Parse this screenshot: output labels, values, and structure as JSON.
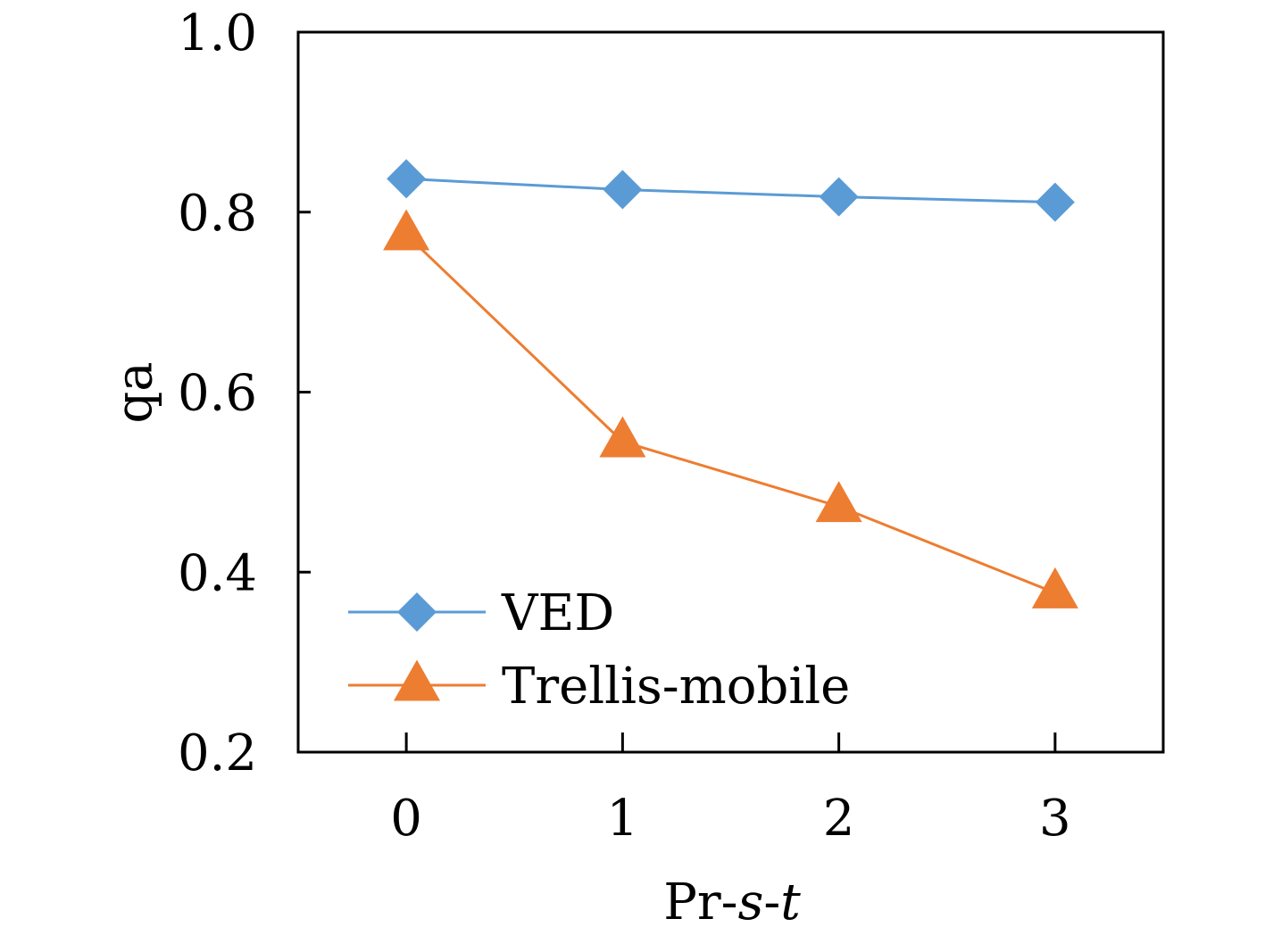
{
  "chart_data": {
    "type": "line",
    "title": "",
    "xlabel": {
      "prefix": "Pr-",
      "s": "s",
      "dash": "-",
      "t": "t"
    },
    "ylabel": "qa",
    "x": [
      0,
      1,
      2,
      3
    ],
    "x_tick_labels": [
      "0",
      "1",
      "2",
      "3"
    ],
    "xlim": [
      -0.5,
      3.5
    ],
    "ylim": [
      0.2,
      1.0
    ],
    "y_ticks": [
      0.2,
      0.4,
      0.6,
      0.8,
      1.0
    ],
    "y_tick_labels": [
      "0.2",
      "0.4",
      "0.6",
      "0.8",
      "1.0"
    ],
    "grid": false,
    "legend_position": "bottom-left",
    "series": [
      {
        "name": "VED",
        "values": [
          0.837,
          0.825,
          0.817,
          0.811
        ],
        "color": "#5B9BD5",
        "marker": "diamond"
      },
      {
        "name": "Trellis-mobile",
        "values": [
          0.775,
          0.545,
          0.473,
          0.377
        ],
        "color": "#ED7D31",
        "marker": "triangle"
      }
    ]
  }
}
